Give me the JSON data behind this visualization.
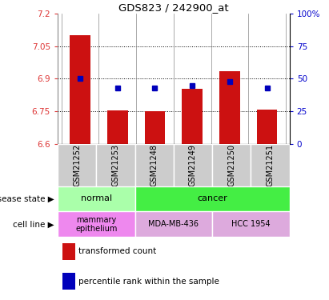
{
  "title": "GDS823 / 242900_at",
  "samples": [
    "GSM21252",
    "GSM21253",
    "GSM21248",
    "GSM21249",
    "GSM21250",
    "GSM21251"
  ],
  "bar_values": [
    7.1,
    6.755,
    6.75,
    6.855,
    6.935,
    6.757
  ],
  "percentile_values": [
    50,
    43,
    43,
    45,
    48,
    43
  ],
  "ylim_left": [
    6.6,
    7.2
  ],
  "ylim_right": [
    0,
    100
  ],
  "yticks_left": [
    6.6,
    6.75,
    6.9,
    7.05,
    7.2
  ],
  "ytick_labels_left": [
    "6.6",
    "6.75",
    "6.9",
    "7.05",
    "7.2"
  ],
  "yticks_right": [
    0,
    25,
    50,
    75,
    100
  ],
  "ytick_labels_right": [
    "0",
    "25",
    "50",
    "75",
    "100%"
  ],
  "bar_color": "#cc1111",
  "sq_color": "#0000bb",
  "bar_width": 0.55,
  "disease_normal_color": "#aaffaa",
  "disease_cancer_color": "#44ee44",
  "cell_mamm_color": "#ee88ee",
  "cell_mda_color": "#ddaadd",
  "cell_hcc_color": "#ddaadd",
  "legend_red": "transformed count",
  "legend_blue": "percentile rank within the sample",
  "sample_bg": "#cccccc"
}
